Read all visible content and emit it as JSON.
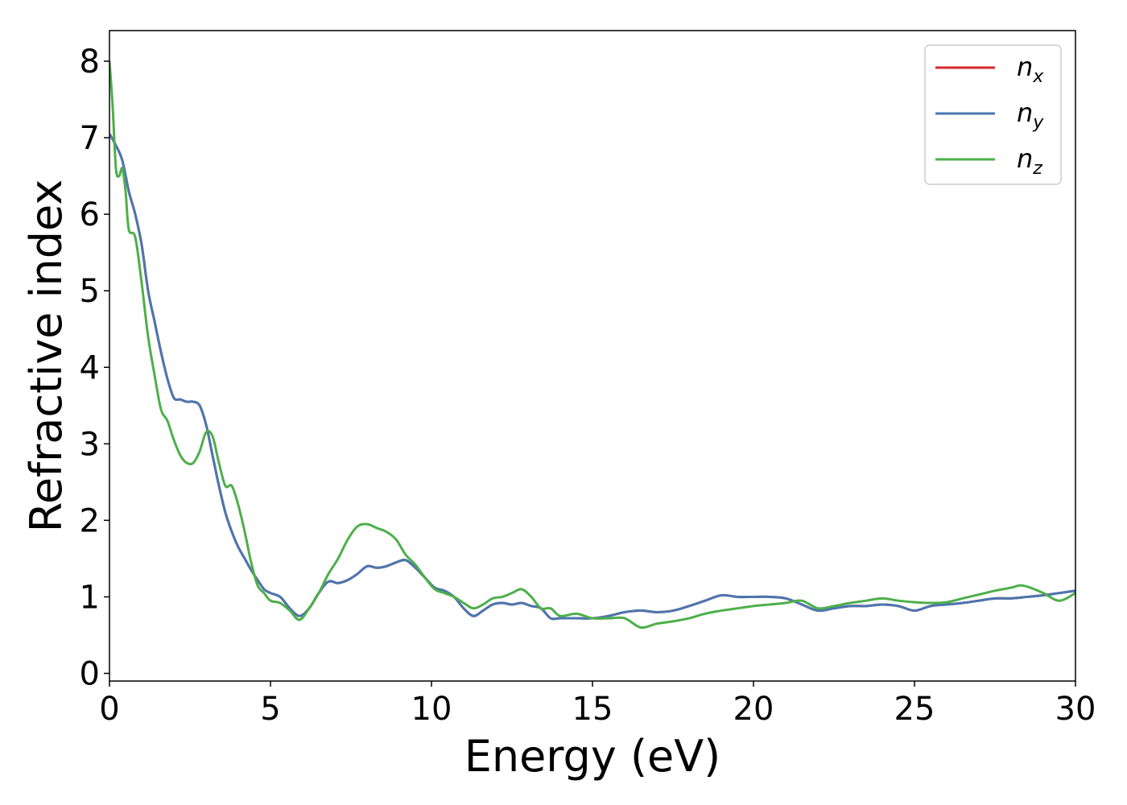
{
  "chart_data": {
    "type": "line",
    "title": "",
    "xlabel": "Energy (eV)",
    "ylabel": "Refractive index",
    "xlim": [
      0,
      30
    ],
    "ylim": [
      -0.1,
      8.4
    ],
    "xticks": [
      0,
      5,
      10,
      15,
      20,
      25,
      30
    ],
    "yticks": [
      0,
      1,
      2,
      3,
      4,
      5,
      6,
      7,
      8
    ],
    "grid": false,
    "legend_position": "top-right",
    "series": [
      {
        "name": "n_x",
        "label_main": "n",
        "label_sub": "x",
        "color": "#d62728",
        "x": [
          0,
          0.2,
          0.4,
          0.6,
          0.8,
          1.0,
          1.2,
          1.4,
          1.6,
          1.8,
          2.0,
          2.2,
          2.4,
          2.6,
          2.8,
          3.0,
          3.2,
          3.4,
          3.6,
          3.8,
          4.0,
          4.2,
          4.4,
          4.6,
          4.8,
          5.0,
          5.3,
          5.6,
          5.9,
          6.2,
          6.5,
          6.8,
          7.1,
          7.4,
          7.7,
          8.0,
          8.3,
          8.6,
          8.9,
          9.2,
          9.5,
          9.8,
          10.1,
          10.4,
          10.7,
          11.0,
          11.3,
          11.6,
          11.9,
          12.2,
          12.5,
          12.8,
          13.1,
          13.4,
          13.7,
          14.0,
          14.5,
          15.0,
          15.5,
          16.0,
          16.5,
          17.0,
          17.5,
          18.0,
          18.5,
          19.0,
          19.5,
          20.0,
          20.5,
          21.0,
          21.5,
          22.0,
          22.5,
          23.0,
          23.5,
          24.0,
          24.5,
          25.0,
          25.5,
          26.0,
          26.5,
          27.0,
          27.5,
          28.0,
          28.5,
          29.0,
          29.5,
          30.0
        ],
        "y": [
          7.05,
          6.9,
          6.7,
          6.3,
          6.0,
          5.6,
          5.0,
          4.6,
          4.2,
          3.85,
          3.6,
          3.58,
          3.55,
          3.55,
          3.5,
          3.25,
          2.85,
          2.45,
          2.1,
          1.85,
          1.65,
          1.5,
          1.35,
          1.22,
          1.1,
          1.05,
          1.0,
          0.85,
          0.75,
          0.85,
          1.05,
          1.2,
          1.18,
          1.22,
          1.3,
          1.4,
          1.38,
          1.4,
          1.45,
          1.48,
          1.38,
          1.25,
          1.12,
          1.08,
          1.0,
          0.85,
          0.75,
          0.82,
          0.9,
          0.92,
          0.9,
          0.92,
          0.88,
          0.85,
          0.72,
          0.72,
          0.72,
          0.72,
          0.75,
          0.8,
          0.82,
          0.8,
          0.82,
          0.88,
          0.95,
          1.02,
          1.0,
          1.0,
          1.0,
          0.98,
          0.9,
          0.82,
          0.85,
          0.88,
          0.88,
          0.9,
          0.88,
          0.82,
          0.88,
          0.9,
          0.92,
          0.95,
          0.98,
          0.98,
          1.0,
          1.02,
          1.05,
          1.08
        ]
      },
      {
        "name": "n_y",
        "label_main": "n",
        "label_sub": "y",
        "color": "#4a77b0",
        "x": [
          0,
          0.2,
          0.4,
          0.6,
          0.8,
          1.0,
          1.2,
          1.4,
          1.6,
          1.8,
          2.0,
          2.2,
          2.4,
          2.6,
          2.8,
          3.0,
          3.2,
          3.4,
          3.6,
          3.8,
          4.0,
          4.2,
          4.4,
          4.6,
          4.8,
          5.0,
          5.3,
          5.6,
          5.9,
          6.2,
          6.5,
          6.8,
          7.1,
          7.4,
          7.7,
          8.0,
          8.3,
          8.6,
          8.9,
          9.2,
          9.5,
          9.8,
          10.1,
          10.4,
          10.7,
          11.0,
          11.3,
          11.6,
          11.9,
          12.2,
          12.5,
          12.8,
          13.1,
          13.4,
          13.7,
          14.0,
          14.5,
          15.0,
          15.5,
          16.0,
          16.5,
          17.0,
          17.5,
          18.0,
          18.5,
          19.0,
          19.5,
          20.0,
          20.5,
          21.0,
          21.5,
          22.0,
          22.5,
          23.0,
          23.5,
          24.0,
          24.5,
          25.0,
          25.5,
          26.0,
          26.5,
          27.0,
          27.5,
          28.0,
          28.5,
          29.0,
          29.5,
          30.0
        ],
        "y": [
          7.05,
          6.9,
          6.7,
          6.3,
          6.0,
          5.6,
          5.0,
          4.6,
          4.2,
          3.85,
          3.6,
          3.58,
          3.55,
          3.55,
          3.5,
          3.25,
          2.85,
          2.45,
          2.1,
          1.85,
          1.65,
          1.5,
          1.35,
          1.22,
          1.1,
          1.05,
          1.0,
          0.85,
          0.75,
          0.85,
          1.05,
          1.2,
          1.18,
          1.22,
          1.3,
          1.4,
          1.38,
          1.4,
          1.45,
          1.48,
          1.38,
          1.25,
          1.12,
          1.08,
          1.0,
          0.85,
          0.75,
          0.82,
          0.9,
          0.92,
          0.9,
          0.92,
          0.88,
          0.85,
          0.72,
          0.72,
          0.72,
          0.72,
          0.75,
          0.8,
          0.82,
          0.8,
          0.82,
          0.88,
          0.95,
          1.02,
          1.0,
          1.0,
          1.0,
          0.98,
          0.9,
          0.82,
          0.85,
          0.88,
          0.88,
          0.9,
          0.88,
          0.82,
          0.88,
          0.9,
          0.92,
          0.95,
          0.98,
          0.98,
          1.0,
          1.02,
          1.05,
          1.08
        ]
      },
      {
        "name": "n_z",
        "label_main": "n",
        "label_sub": "z",
        "color": "#4daf4a",
        "x": [
          0,
          0.1,
          0.2,
          0.3,
          0.4,
          0.5,
          0.6,
          0.8,
          1.0,
          1.2,
          1.4,
          1.6,
          1.8,
          2.0,
          2.2,
          2.4,
          2.6,
          2.8,
          3.0,
          3.2,
          3.4,
          3.6,
          3.8,
          4.0,
          4.2,
          4.4,
          4.6,
          4.8,
          5.0,
          5.3,
          5.6,
          5.9,
          6.2,
          6.5,
          6.8,
          7.1,
          7.4,
          7.7,
          8.0,
          8.3,
          8.6,
          8.9,
          9.2,
          9.5,
          9.8,
          10.1,
          10.4,
          10.7,
          11.0,
          11.3,
          11.6,
          11.9,
          12.2,
          12.5,
          12.8,
          13.1,
          13.4,
          13.7,
          14.0,
          14.5,
          15.0,
          15.5,
          16.0,
          16.5,
          17.0,
          17.5,
          18.0,
          18.5,
          19.0,
          19.5,
          20.0,
          20.5,
          21.0,
          21.5,
          22.0,
          22.5,
          23.0,
          23.5,
          24.0,
          24.5,
          25.0,
          25.5,
          26.0,
          26.5,
          27.0,
          27.5,
          28.0,
          28.3,
          28.6,
          29.0,
          29.5,
          30.0
        ],
        "y": [
          8.0,
          7.4,
          6.6,
          6.5,
          6.6,
          6.3,
          5.8,
          5.7,
          5.1,
          4.4,
          3.9,
          3.45,
          3.3,
          3.05,
          2.85,
          2.75,
          2.75,
          2.9,
          3.15,
          3.1,
          2.75,
          2.45,
          2.45,
          2.2,
          1.85,
          1.45,
          1.15,
          1.05,
          0.95,
          0.92,
          0.82,
          0.7,
          0.85,
          1.05,
          1.3,
          1.5,
          1.75,
          1.92,
          1.95,
          1.9,
          1.85,
          1.75,
          1.55,
          1.42,
          1.25,
          1.1,
          1.05,
          1.0,
          0.92,
          0.85,
          0.9,
          0.98,
          1.0,
          1.05,
          1.1,
          1.0,
          0.85,
          0.85,
          0.75,
          0.78,
          0.72,
          0.72,
          0.72,
          0.6,
          0.65,
          0.68,
          0.72,
          0.78,
          0.82,
          0.85,
          0.88,
          0.9,
          0.92,
          0.95,
          0.85,
          0.88,
          0.92,
          0.95,
          0.98,
          0.95,
          0.93,
          0.92,
          0.93,
          0.98,
          1.03,
          1.08,
          1.12,
          1.15,
          1.12,
          1.05,
          0.95,
          1.05
        ]
      }
    ]
  }
}
